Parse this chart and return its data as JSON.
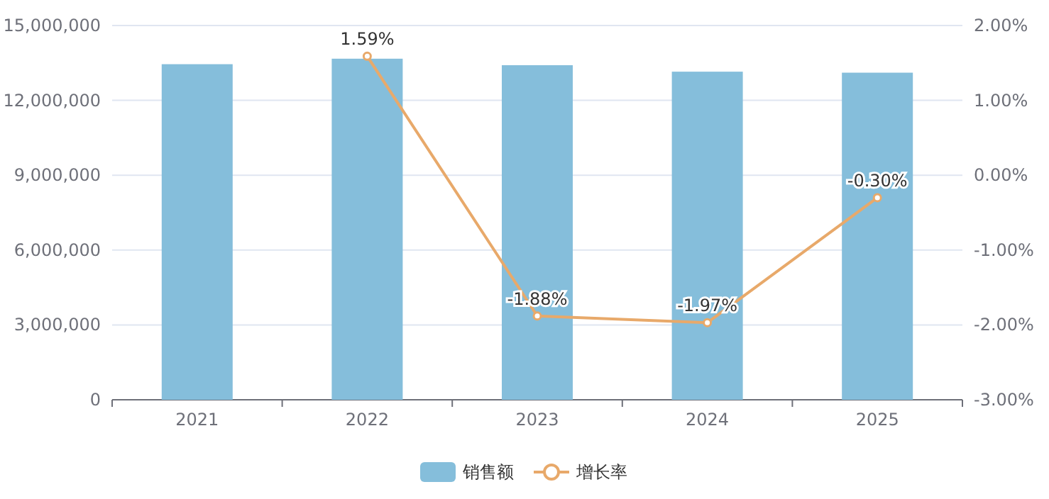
{
  "chart_data": {
    "type": "bar",
    "categories": [
      "2021",
      "2022",
      "2023",
      "2024",
      "2025"
    ],
    "series": [
      {
        "name": "销售额",
        "color": "#85bedb",
        "values": [
          13450000,
          13670000,
          13410000,
          13150000,
          13110000
        ]
      },
      {
        "name": "增长率",
        "type": "line",
        "axis": "y2",
        "color": "#e8a96a",
        "marker": "circle",
        "values": [
          null,
          1.59,
          -1.88,
          -1.97,
          -0.3
        ],
        "value_labels": [
          null,
          "1.59%",
          "-1.88%",
          "-1.97%",
          "-0.30%"
        ]
      }
    ],
    "ylim": [
      0,
      15000000
    ],
    "yticks": [
      0,
      {
        "value": 3000000,
        "label": "3,000,000"
      },
      {
        "value": 6000000,
        "label": "6,000,000"
      },
      {
        "value": 9000000,
        "label": "9,000,000"
      },
      {
        "value": 12000000,
        "label": "12,000,000"
      },
      {
        "value": 15000000,
        "label": "15,000,000"
      }
    ],
    "y2lim": [
      -3,
      2
    ],
    "y2ticks": [
      {
        "value": -3,
        "label": "-3.00%"
      },
      {
        "value": -2,
        "label": "-2.00%"
      },
      {
        "value": -1,
        "label": "-1.00%"
      },
      {
        "value": 0,
        "label": "0.00%"
      },
      {
        "value": 1,
        "label": "1.00%"
      },
      {
        "value": 2,
        "label": "2.00%"
      }
    ],
    "grid": "y",
    "legend": "bottom"
  }
}
